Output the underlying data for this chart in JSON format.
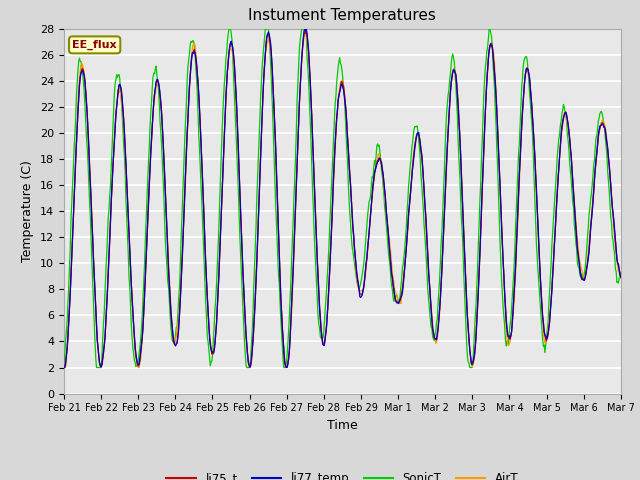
{
  "title": "Instument Temperatures",
  "xlabel": "Time",
  "ylabel": "Temperature (C)",
  "ylim": [
    0,
    28
  ],
  "yticks": [
    0,
    2,
    4,
    6,
    8,
    10,
    12,
    14,
    16,
    18,
    20,
    22,
    24,
    26,
    28
  ],
  "xtick_labels": [
    "Feb 21",
    "Feb 22",
    "Feb 23",
    "Feb 24",
    "Feb 25",
    "Feb 26",
    "Feb 27",
    "Feb 28",
    "Feb 29",
    "Mar 1",
    "Mar 2",
    "Mar 3",
    "Mar 4",
    "Mar 5",
    "Mar 6",
    "Mar 7"
  ],
  "series_names": [
    "li75_t",
    "li77_temp",
    "SonicT",
    "AirT"
  ],
  "series_colors": [
    "#cc0000",
    "#0000cc",
    "#00cc00",
    "#ff9900"
  ],
  "legend_label": "EE_flux",
  "background_color": "#d8d8d8",
  "plot_bg": "#e8e8e8",
  "grid_color": "#ffffff",
  "title_fontsize": 11,
  "axis_fontsize": 9,
  "tick_fontsize": 8
}
